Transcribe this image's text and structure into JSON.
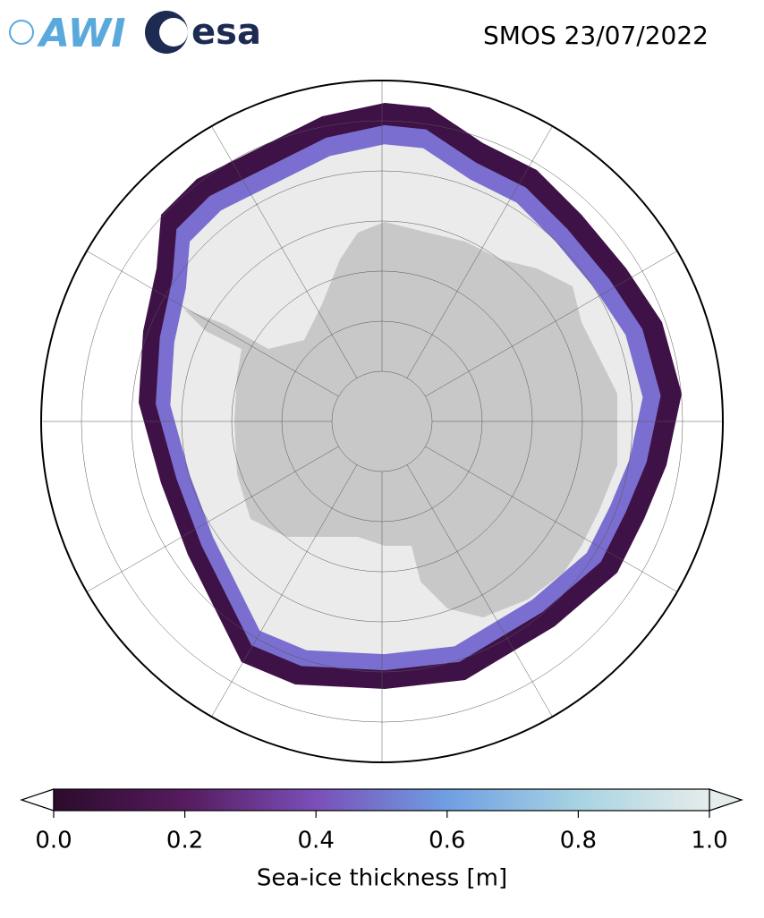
{
  "header": {
    "logos": {
      "awi": "AWI",
      "esa": "esa"
    },
    "title": "SMOS 23/07/2022"
  },
  "colorbar": {
    "label": "Sea-ice thickness [m]",
    "lim": [
      0,
      1
    ],
    "ticks": [
      {
        "value": 0,
        "label": "0.0"
      },
      {
        "value": 0.2,
        "label": "0.2"
      },
      {
        "value": 0.4,
        "label": "0.4"
      },
      {
        "value": 0.6,
        "label": "0.6"
      },
      {
        "value": 0.8,
        "label": "0.8"
      },
      {
        "value": 1,
        "label": "1.0"
      }
    ],
    "colors": [
      "#2b0b2b",
      "#561b5e",
      "#7a4fb8",
      "#6f9fe2",
      "#a7d3e2",
      "#e6ecec"
    ]
  }
}
